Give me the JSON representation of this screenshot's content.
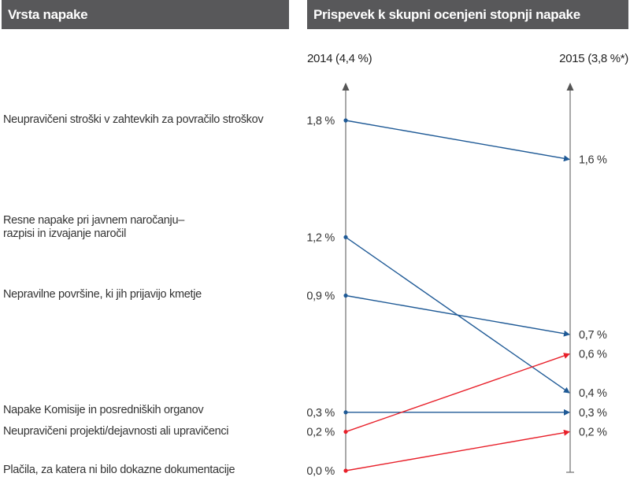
{
  "header": {
    "left_title": "Vrsta napake",
    "right_title": "Prispevek k skupni ocenjeni stopnji napake"
  },
  "chart_data": {
    "type": "slope",
    "title": "Prispevek k skupni ocenjeni stopnji napake",
    "row_header": "Vrsta napake",
    "x": [
      "2014 (4,4 %)",
      "2015 (3,8 %*)"
    ],
    "ylim": [
      0,
      2.0
    ],
    "colors": {
      "decrease_or_same": "#1f5a96",
      "increase": "#e8202a",
      "axis": "#7a7a7a"
    },
    "series": [
      {
        "name": "Neupravičeni stroški v zahtevkih za povračilo stroškov",
        "values": [
          1.8,
          1.6
        ],
        "labels": [
          "1,8 %",
          "1,6 %"
        ],
        "color": "#1f5a96"
      },
      {
        "name": "Resne napake pri javnem naročanju–\nrazpisi in izvajanje naročil",
        "values": [
          1.2,
          0.4
        ],
        "labels": [
          "1,2 %",
          "0,4 %"
        ],
        "color": "#1f5a96"
      },
      {
        "name": "Nepravilne površine, ki jih prijavijo kmetje",
        "values": [
          0.9,
          0.7
        ],
        "labels": [
          "0,9 %",
          "0,7 %"
        ],
        "color": "#1f5a96"
      },
      {
        "name": "Napake Komisije in posredniških organov",
        "values": [
          0.3,
          0.3
        ],
        "labels": [
          "0,3 %",
          "0,3 %"
        ],
        "color": "#1f5a96"
      },
      {
        "name": "Neupravičeni projekti/dejavnosti ali upravičenci",
        "values": [
          0.2,
          0.6
        ],
        "labels": [
          "0,2 %",
          "0,6 %"
        ],
        "color": "#e8202a"
      },
      {
        "name": "Plačila, za katera ni bilo dokazne dokumentacije",
        "values": [
          0.0,
          0.2
        ],
        "labels": [
          "0,0 %",
          "0,2 %"
        ],
        "color": "#e8202a"
      }
    ]
  }
}
